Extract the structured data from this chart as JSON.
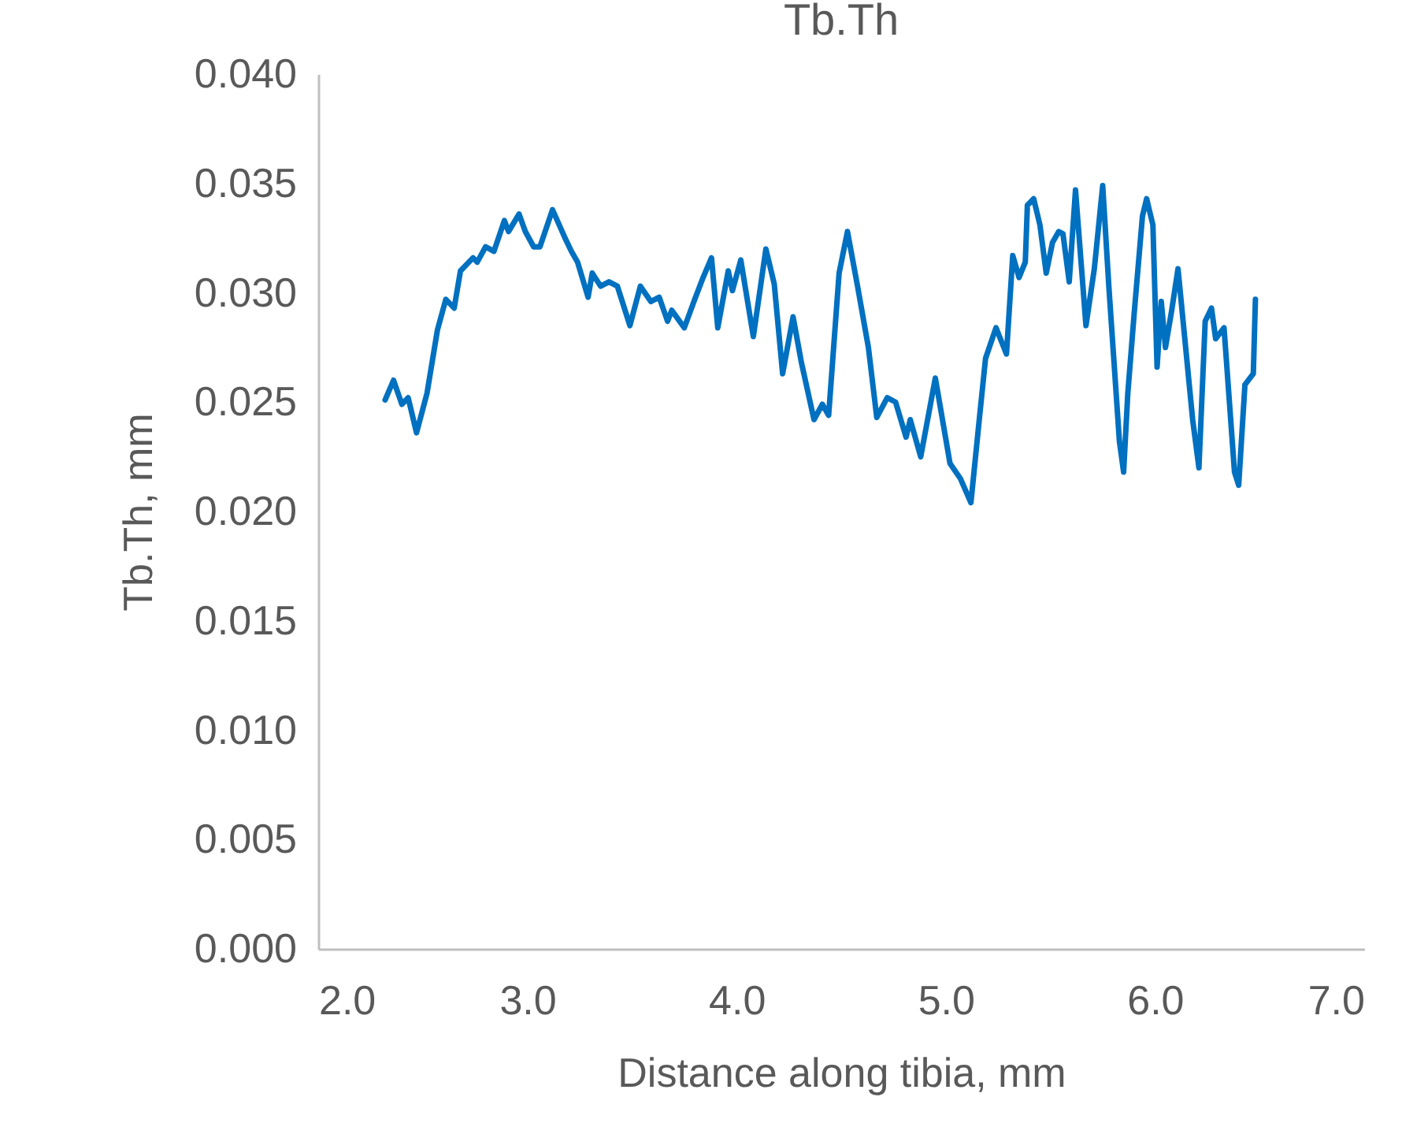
{
  "chart_data": {
    "type": "line",
    "title": "Tb.Th",
    "xlabel": "Distance along tibia, mm",
    "ylabel": "Tb.Th, mm",
    "xlim": [
      2,
      7
    ],
    "xticks": [
      {
        "value": 2,
        "label": "2.0"
      },
      {
        "value": 3,
        "label": "3.0"
      },
      {
        "value": 4,
        "label": "4.0"
      },
      {
        "value": 5,
        "label": "5.0"
      },
      {
        "value": 6,
        "label": "6.0"
      },
      {
        "value": 7,
        "label": "7.0"
      }
    ],
    "ylim": [
      0,
      0.04
    ],
    "yticks": [
      {
        "value": 0,
        "label": "0.000"
      },
      {
        "value": 0.005,
        "label": "0.005"
      },
      {
        "value": 0.01,
        "label": "0.010"
      },
      {
        "value": 0.015,
        "label": "0.015"
      },
      {
        "value": 0.02,
        "label": "0.020"
      },
      {
        "value": 0.025,
        "label": "0.025"
      },
      {
        "value": 0.03,
        "label": "0.030"
      },
      {
        "value": 0.035,
        "label": "0.035"
      },
      {
        "value": 0.04,
        "label": "0.040"
      }
    ],
    "grid": false,
    "legend": false,
    "marker": "none",
    "line_style": "solid",
    "series": [
      {
        "color": "#0070c0",
        "x": [
          2.32,
          2.36,
          2.4,
          2.43,
          2.47,
          2.52,
          2.57,
          2.61,
          2.65,
          2.68,
          2.74,
          2.76,
          2.8,
          2.84,
          2.89,
          2.91,
          2.96,
          2.99,
          3.03,
          3.06,
          3.12,
          3.18,
          3.21,
          3.24,
          3.29,
          3.31,
          3.35,
          3.39,
          3.43,
          3.49,
          3.54,
          3.59,
          3.63,
          3.67,
          3.69,
          3.75,
          3.8,
          3.84,
          3.88,
          3.91,
          3.96,
          3.98,
          4.02,
          4.08,
          4.14,
          4.18,
          4.22,
          4.27,
          4.31,
          4.37,
          4.41,
          4.44,
          4.49,
          4.53,
          4.58,
          4.63,
          4.67,
          4.72,
          4.76,
          4.81,
          4.83,
          4.88,
          4.95,
          5.02,
          5.07,
          5.12,
          5.16,
          5.19,
          5.24,
          5.29,
          5.32,
          5.35,
          5.38,
          5.39,
          5.42,
          5.45,
          5.48,
          5.51,
          5.54,
          5.56,
          5.59,
          5.62,
          5.67,
          5.71,
          5.75,
          5.78,
          5.83,
          5.85,
          5.87,
          5.9,
          5.94,
          5.96,
          5.99,
          6.01,
          6.03,
          6.05,
          6.08,
          6.11,
          6.18,
          6.21,
          6.24,
          6.27,
          6.29,
          6.33,
          6.38,
          6.4,
          6.43,
          6.47,
          6.48
        ],
        "values": [
          0.0251,
          0.026,
          0.0249,
          0.0252,
          0.0236,
          0.0254,
          0.0283,
          0.0297,
          0.0293,
          0.031,
          0.0316,
          0.0314,
          0.0321,
          0.0319,
          0.0333,
          0.0328,
          0.0336,
          0.0328,
          0.0321,
          0.0321,
          0.0338,
          0.0325,
          0.0319,
          0.0314,
          0.0298,
          0.0309,
          0.0303,
          0.0305,
          0.0303,
          0.0285,
          0.0303,
          0.0296,
          0.0298,
          0.0287,
          0.0292,
          0.0284,
          0.0297,
          0.0307,
          0.0316,
          0.0284,
          0.031,
          0.0301,
          0.0315,
          0.028,
          0.032,
          0.0304,
          0.0263,
          0.0289,
          0.0268,
          0.0242,
          0.0249,
          0.0244,
          0.0309,
          0.0328,
          0.0302,
          0.0275,
          0.0243,
          0.0252,
          0.025,
          0.0234,
          0.0242,
          0.0225,
          0.0261,
          0.0222,
          0.0215,
          0.0204,
          0.0242,
          0.027,
          0.0284,
          0.0272,
          0.0317,
          0.0307,
          0.0314,
          0.034,
          0.0343,
          0.0331,
          0.0309,
          0.0323,
          0.0328,
          0.0327,
          0.0305,
          0.0347,
          0.0285,
          0.0311,
          0.0349,
          0.0302,
          0.0232,
          0.0218,
          0.0254,
          0.029,
          0.0335,
          0.0343,
          0.0331,
          0.0266,
          0.0296,
          0.0275,
          0.0292,
          0.0311,
          0.0242,
          0.022,
          0.0287,
          0.0293,
          0.0279,
          0.0284,
          0.0218,
          0.0212,
          0.0258,
          0.0263,
          0.0297
        ]
      }
    ]
  }
}
